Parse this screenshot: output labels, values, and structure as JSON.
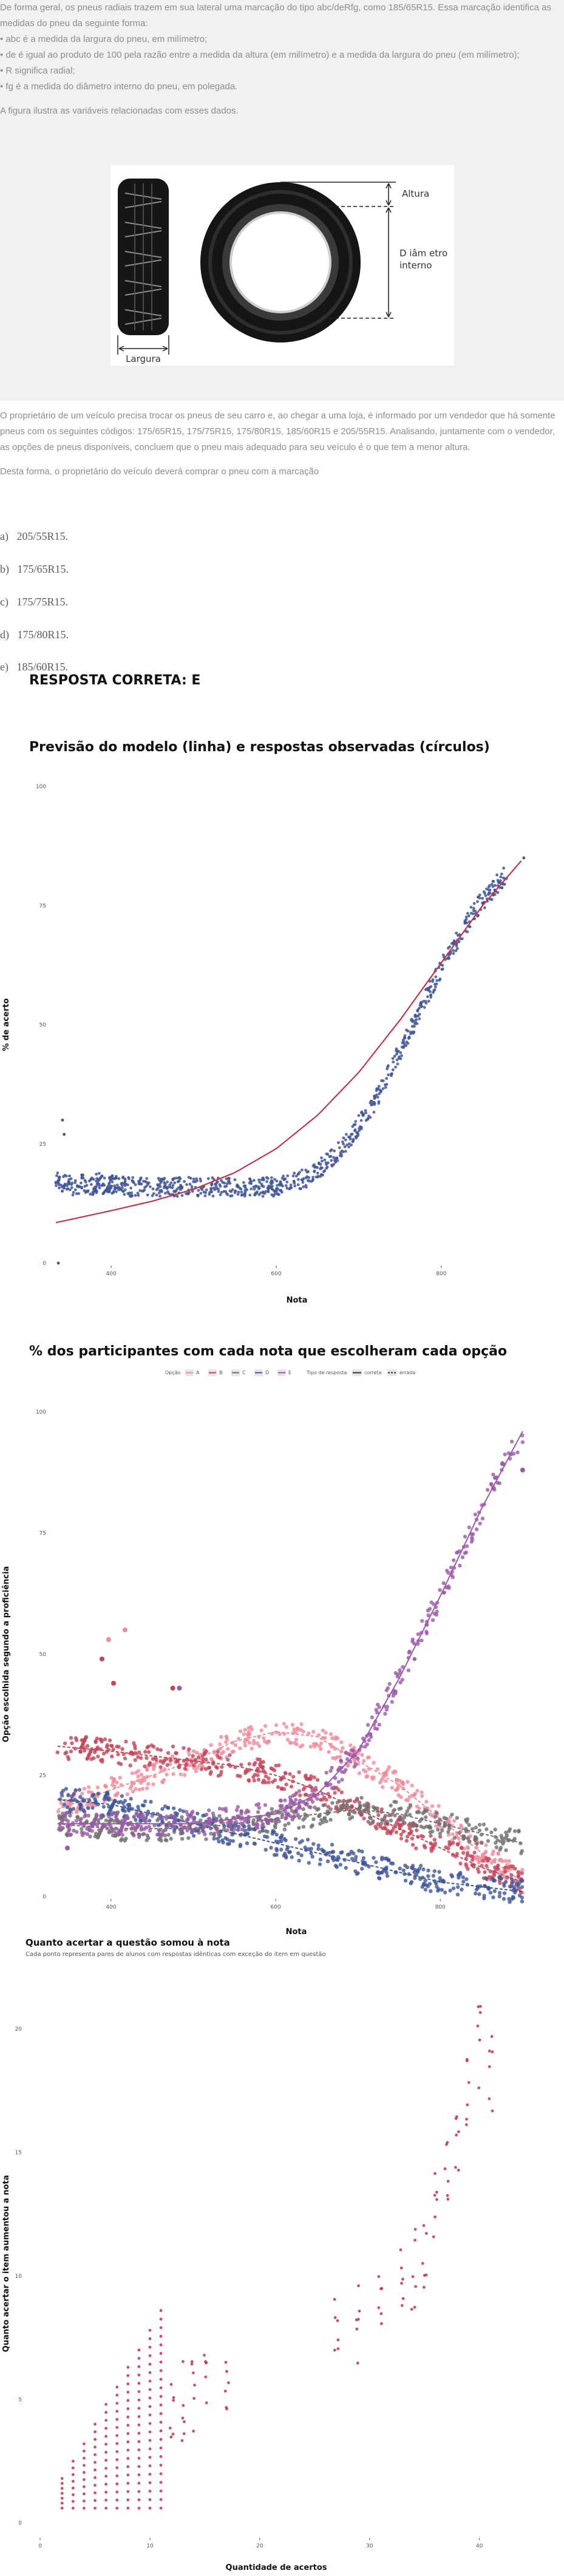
{
  "question": {
    "intro": [
      "De forma geral, os pneus radiais trazem em sua lateral uma marcação do tipo abc/deRfg, como 185/65R15. Essa marcação identifica as medidas do pneu da seguinte forma:",
      "• abc é a medida da largura do pneu, em milímetro;",
      "• de é igual ao produto de 100 pela razão entre a medida da altura (em milímetro) e a medida da largura do pneu (em milímetro);",
      "• R significa radial;",
      "• fg é a medida do diâmetro interno do pneu, em polegada."
    ],
    "figure_caption": "A figura ilustra as variáveis relacionadas com esses dados.",
    "figure_labels": {
      "width": "Largura",
      "height": "Altura",
      "diameter_line1": "D iâm etro",
      "diameter_line2": "interno"
    },
    "scenario": "O proprietário de um veículo precisa trocar os pneus de seu carro e, ao chegar a uma loja, é informado por um vendedor que há somente pneus com os seguintes códigos: 175/65R15, 175/75R15, 175/80R15, 185/60R15 e 205/55R15. Analisando, juntamente com o vendedor, as opções de pneus disponíveis, concluem que o pneu mais adequado para seu veículo é o que tem a menor altura.",
    "prompt": "Desta forma, o proprietário do veículo deverá comprar o pneu com a marcação",
    "options": [
      {
        "letter": "a)",
        "text": "205/55R15."
      },
      {
        "letter": "b)",
        "text": "175/65R15."
      },
      {
        "letter": "c)",
        "text": "175/75R15."
      },
      {
        "letter": "d)",
        "text": "175/80R15."
      },
      {
        "letter": "e)",
        "text": "185/60R15."
      }
    ],
    "correct_answer": "RESPOSTA CORRETA: E"
  },
  "chart_data": [
    {
      "type": "scatter",
      "title": "Previsão do modelo (linha) e respostas observadas (círculos)",
      "xlabel": "Nota",
      "ylabel": "% de acerto",
      "x_ticks": [
        "400",
        "600",
        "800"
      ],
      "y_ticks": [
        "0",
        "25",
        "50",
        "75",
        "100"
      ],
      "xlim": [
        330,
        920
      ],
      "ylim": [
        0,
        100
      ],
      "series": [
        {
          "kind": "observed",
          "color": "#3f5596",
          "x": [
            333,
            345,
            355,
            365,
            375,
            385,
            395,
            405,
            420,
            440,
            460,
            480,
            500,
            520,
            540,
            560,
            580,
            600,
            620,
            640,
            660,
            680,
            700,
            720,
            740,
            760,
            780,
            800,
            820,
            840,
            860,
            880
          ],
          "y": [
            17,
            17,
            16,
            17,
            16,
            17,
            16,
            17,
            16,
            16,
            16,
            16,
            16,
            16,
            16,
            16,
            16,
            16,
            17,
            18,
            21,
            24,
            29,
            34,
            41,
            48,
            55,
            62,
            68,
            74,
            78,
            82
          ]
        },
        {
          "kind": "model",
          "color": "#c0334a",
          "x": [
            333,
            360,
            400,
            450,
            500,
            550,
            600,
            650,
            700,
            750,
            800,
            850,
            900
          ],
          "y": [
            8.5,
            9.5,
            11,
            13,
            15.5,
            19,
            24,
            31,
            40,
            51,
            63,
            75,
            85
          ]
        }
      ]
    },
    {
      "type": "scatter",
      "title": "% dos participantes com cada nota que escolheram cada opção",
      "xlabel": "Nota",
      "ylabel": "Opção escolhida segundo a proficiência",
      "x_ticks": [
        "400",
        "600",
        "800"
      ],
      "y_ticks": [
        "0",
        "25",
        "50",
        "75",
        "100"
      ],
      "xlim": [
        330,
        920
      ],
      "ylim": [
        0,
        100
      ],
      "legend": {
        "option_title": "Opção",
        "options": [
          "A",
          "B",
          "C",
          "D",
          "E"
        ],
        "type_title": "Tipo de resposta",
        "types": [
          "correta",
          "errada"
        ]
      },
      "series": [
        {
          "name": "A",
          "color": "#f08a9a",
          "x": [
            335,
            400,
            450,
            500,
            550,
            600,
            650,
            700,
            750,
            800,
            850,
            900
          ],
          "y": [
            18,
            22,
            25,
            28,
            32,
            34,
            33,
            28,
            23,
            16,
            9,
            3
          ]
        },
        {
          "name": "B",
          "color": "#c24459",
          "x": [
            335,
            400,
            450,
            500,
            550,
            600,
            650,
            700,
            750,
            800,
            850,
            900
          ],
          "y": [
            31,
            30,
            29,
            28,
            27,
            25,
            22,
            18,
            14,
            10,
            6,
            3
          ]
        },
        {
          "name": "C",
          "color": "#6e6e6e",
          "x": [
            335,
            400,
            450,
            500,
            550,
            600,
            650,
            700,
            750,
            800,
            850,
            900
          ],
          "y": [
            15,
            14,
            14,
            14,
            15,
            16,
            17,
            18,
            17,
            15,
            13,
            11
          ]
        },
        {
          "name": "D",
          "color": "#3f5596",
          "x": [
            335,
            400,
            450,
            500,
            550,
            600,
            650,
            700,
            750,
            800,
            850,
            900
          ],
          "y": [
            20,
            19,
            17,
            15,
            13,
            11,
            9,
            7,
            5,
            3,
            2,
            1
          ]
        },
        {
          "name": "E",
          "color": "#9b59a8",
          "x": [
            335,
            400,
            450,
            500,
            550,
            600,
            650,
            700,
            750,
            800,
            850,
            900
          ],
          "y": [
            15,
            15,
            15,
            15,
            16,
            17,
            21,
            30,
            45,
            62,
            80,
            96
          ]
        }
      ]
    },
    {
      "type": "scatter",
      "title": "Quanto acertar a questão somou à nota",
      "subtitle": "Cada ponto representa pares de alunos com respostas idênticas com exceção do item em questão",
      "xlabel": "Quantidade de acertos",
      "ylabel": "Quanto acertar o item aumentou a nota",
      "x_ticks": [
        "0",
        "10",
        "20",
        "30",
        "40"
      ],
      "y_ticks": [
        "0",
        "5",
        "10",
        "15",
        "20"
      ],
      "xlim": [
        -1,
        44
      ],
      "ylim": [
        -0.5,
        21.5
      ],
      "color": "#c0334a",
      "x": [
        2,
        3,
        4,
        5,
        6,
        7,
        8,
        9,
        10,
        11,
        12,
        13,
        14,
        15,
        17,
        27,
        29,
        31,
        33,
        34,
        35,
        36,
        37,
        38,
        39,
        40,
        41
      ],
      "y": [
        1.8,
        2.5,
        3.2,
        4.0,
        4.8,
        5.5,
        6.3,
        7.0,
        7.8,
        8.6,
        5.8,
        6.2,
        6.5,
        6.8,
        6.9,
        8.8,
        9.2,
        9.5,
        10.8,
        11.5,
        12.5,
        14.0,
        15.5,
        17.0,
        18.5,
        20.5,
        19.5
      ]
    }
  ]
}
